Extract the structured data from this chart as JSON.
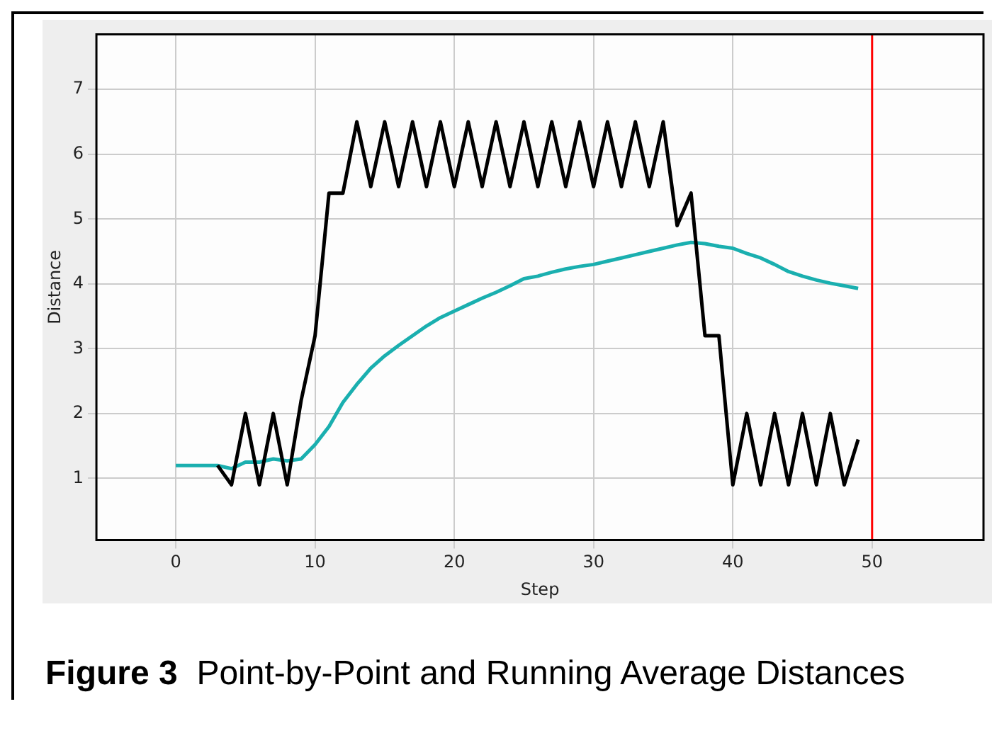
{
  "chart_data": {
    "type": "line",
    "title": "Figure 3",
    "subtitle": "Point-by-Point and Running Average Distances",
    "xlabel": "Step",
    "ylabel": "Distance",
    "x": [
      0,
      1,
      2,
      3,
      4,
      5,
      6,
      7,
      8,
      9,
      10,
      11,
      12,
      13,
      14,
      15,
      16,
      17,
      18,
      19,
      20,
      21,
      22,
      23,
      24,
      25,
      26,
      27,
      28,
      29,
      30,
      31,
      32,
      33,
      34,
      35,
      36,
      37,
      38,
      39,
      40,
      41,
      42,
      43,
      44,
      45,
      46,
      47,
      48,
      49
    ],
    "series": [
      {
        "color": "#000000",
        "values": [
          null,
          null,
          null,
          1.2,
          0.9,
          2,
          0.9,
          2,
          0.9,
          2.2,
          3.2,
          5.4,
          5.4,
          6.5,
          5.5,
          6.5,
          5.5,
          6.5,
          5.5,
          6.5,
          5.5,
          6.5,
          5.5,
          6.5,
          5.5,
          6.5,
          5.5,
          6.5,
          5.5,
          6.5,
          5.5,
          6.5,
          5.5,
          6.5,
          5.5,
          6.5,
          4.9,
          5.4,
          3.2,
          3.2,
          0.9,
          2,
          0.9,
          2,
          0.9,
          2,
          0.9,
          2,
          0.9,
          1.6
        ]
      },
      {
        "color": "#1aafaf",
        "values": [
          1.2,
          1.2,
          1.2,
          1.2,
          1.15,
          1.25,
          1.25,
          1.3,
          1.27,
          1.3,
          1.52,
          1.8,
          2.17,
          2.45,
          2.7,
          2.89,
          3.05,
          3.2,
          3.35,
          3.48,
          3.58,
          3.68,
          3.78,
          3.87,
          3.97,
          4.08,
          4.12,
          4.18,
          4.23,
          4.27,
          4.3,
          4.35,
          4.4,
          4.45,
          4.5,
          4.55,
          4.6,
          4.64,
          4.62,
          4.58,
          4.55,
          4.47,
          4.4,
          4.3,
          4.19,
          4.12,
          4.06,
          4.01,
          3.97,
          3.93
        ]
      }
    ],
    "xlim": [
      -5.7,
      58
    ],
    "xticks": [
      0,
      10,
      20,
      30,
      40,
      50
    ],
    "ylim": [
      0.05,
      7.85
    ],
    "yticks": [
      1,
      2,
      3,
      4,
      5,
      6,
      7
    ],
    "grid": true,
    "marker": "none",
    "line_style": "solid",
    "ref_lines": [
      {
        "axis": "x",
        "value": 50,
        "color": "#ff0000"
      }
    ]
  }
}
